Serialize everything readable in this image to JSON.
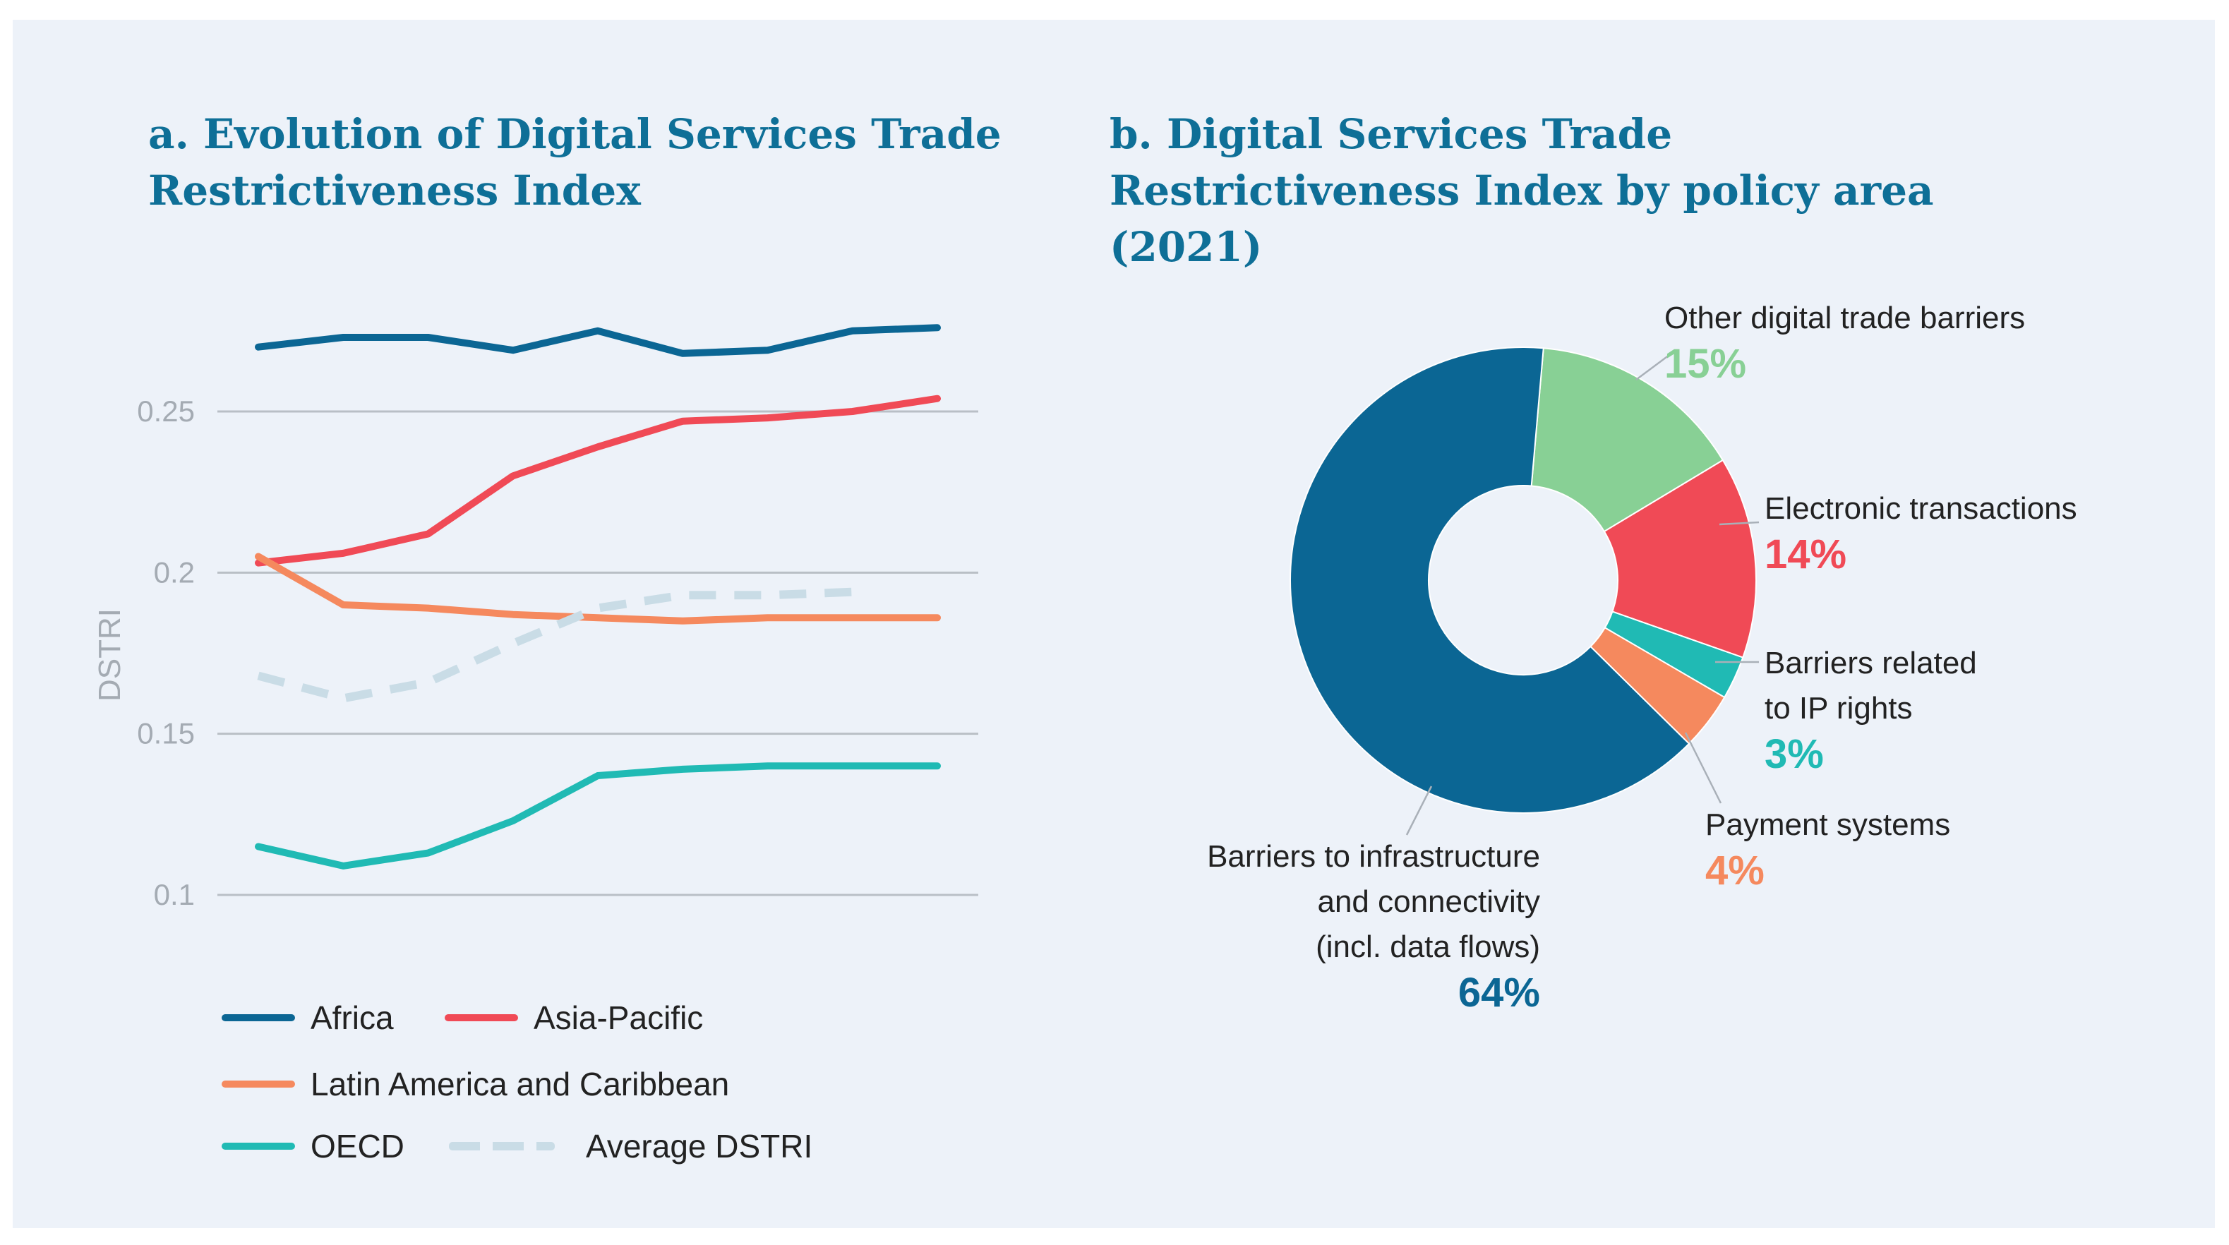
{
  "panel_a": {
    "title": "a. Evolution of Digital Services Trade Restrictiveness Index"
  },
  "panel_b": {
    "title": "b. Digital Services Trade Restrictiveness Index by policy area (2021)"
  },
  "colors": {
    "title": "#0e6f97",
    "africa": "#0b6694",
    "asia_pacific": "#f04a56",
    "latin_america": "#f5895e",
    "oecd": "#20bab4",
    "average": "#c9dce6",
    "infrastructure": "#0b6694",
    "other": "#88d095",
    "electronic": "#f04a56",
    "ip": "#20bab4",
    "payment": "#f5895e"
  },
  "chart_data": [
    {
      "type": "line",
      "title": "a. Evolution of Digital Services Trade Restrictiveness Index",
      "xlabel": "",
      "ylabel": "DSTRI",
      "ylim": [
        0.1,
        0.275
      ],
      "yticks": [
        0.1,
        0.15,
        0.2,
        0.25
      ],
      "ytick_labels": [
        "0.1",
        "0.15",
        "0.2",
        "0.25"
      ],
      "grid": true,
      "x": [
        1,
        2,
        3,
        4,
        5,
        6,
        7,
        8,
        9
      ],
      "series": [
        {
          "key": "africa",
          "name": "Africa",
          "values": [
            0.27,
            0.273,
            0.273,
            0.269,
            0.275,
            0.268,
            0.269,
            0.275,
            0.276
          ]
        },
        {
          "key": "asia_pacific",
          "name": "Asia-Pacific",
          "values": [
            0.203,
            0.206,
            0.212,
            0.23,
            0.239,
            0.247,
            0.248,
            0.25,
            0.254
          ]
        },
        {
          "key": "latin_america",
          "name": "Latin America and Caribbean",
          "values": [
            0.205,
            0.19,
            0.189,
            0.187,
            0.186,
            0.185,
            0.186,
            0.186,
            0.186
          ]
        },
        {
          "key": "oecd",
          "name": "OECD",
          "values": [
            0.115,
            0.109,
            0.113,
            0.123,
            0.137,
            0.139,
            0.14,
            0.14,
            0.14
          ]
        },
        {
          "key": "average",
          "name": "Average DSTRI",
          "dashed": true,
          "values": [
            0.168,
            0.161,
            0.166,
            0.178,
            0.189,
            0.193,
            0.193,
            0.194,
            null
          ]
        }
      ],
      "legend": {
        "placement": "bottom"
      }
    },
    {
      "type": "pie",
      "title": "b. Digital Services Trade Restrictiveness Index by policy area (2021)",
      "donut": true,
      "slices": [
        {
          "key": "other",
          "lines": [
            "Other digital trade barriers"
          ],
          "value": 15,
          "value_label": "15%"
        },
        {
          "key": "electronic",
          "lines": [
            "Electronic transactions"
          ],
          "value": 14,
          "value_label": "14%"
        },
        {
          "key": "ip",
          "lines": [
            "Barriers related",
            "to IP rights"
          ],
          "value": 3,
          "value_label": "3%"
        },
        {
          "key": "payment",
          "lines": [
            "Payment systems"
          ],
          "value": 4,
          "value_label": "4%"
        },
        {
          "key": "infrastructure",
          "lines": [
            "Barriers to infrastructure",
            "and connectivity",
            "(incl. data flows)"
          ],
          "value": 64,
          "value_label": "64%"
        }
      ]
    }
  ]
}
